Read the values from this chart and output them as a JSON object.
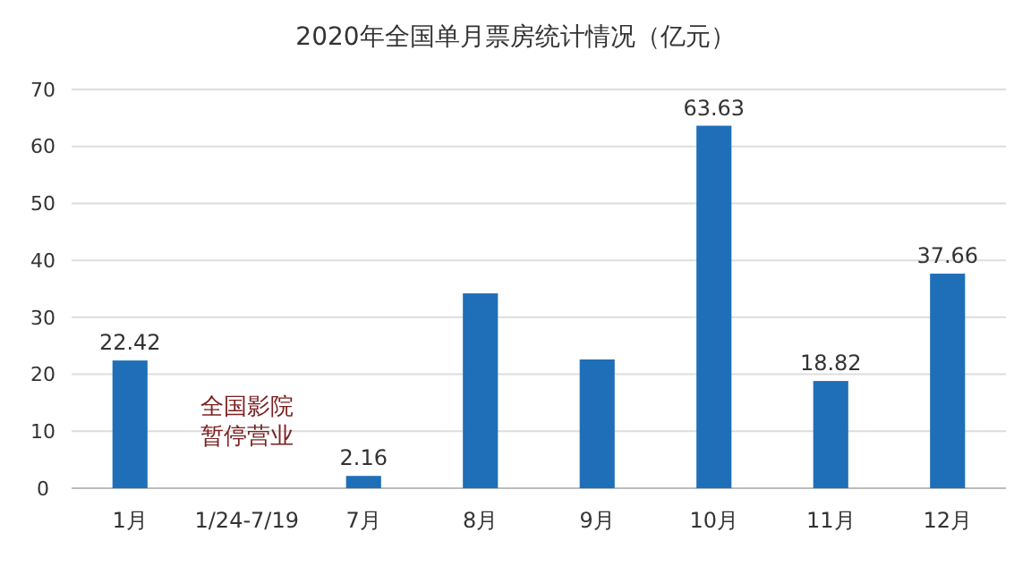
{
  "chart_data": {
    "type": "bar",
    "title": "2020年全国单月票房统计情况（亿元）",
    "categories": [
      "1月",
      "1/24-7/19",
      "7月",
      "8月",
      "9月",
      "10月",
      "11月",
      "12月"
    ],
    "values": [
      22.42,
      null,
      2.16,
      34.2,
      22.6,
      63.63,
      18.82,
      37.66
    ],
    "value_labels": [
      "22.42",
      null,
      "2.16",
      null,
      null,
      "63.63",
      "18.82",
      "37.66"
    ],
    "color": "#1f6fb8",
    "ylim": [
      0,
      70
    ],
    "yticks": [
      0,
      10,
      20,
      30,
      40,
      50,
      60,
      70
    ],
    "grid": "y",
    "annotations": [
      "全国影院暂停营业"
    ]
  }
}
